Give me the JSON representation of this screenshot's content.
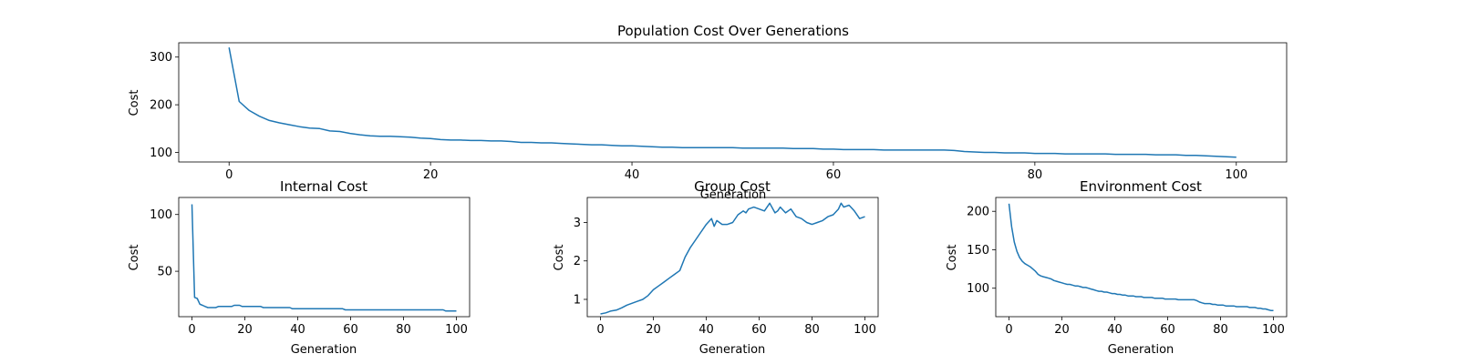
{
  "chart_data": [
    {
      "type": "line",
      "title": "Population Cost Over Generations",
      "xlabel": "Generation",
      "ylabel": "Cost",
      "xlim": [
        -5,
        105
      ],
      "ylim": [
        80,
        330
      ],
      "xticks": [
        0,
        20,
        40,
        60,
        80,
        100
      ],
      "yticks": [
        100,
        200,
        300
      ],
      "grid": false,
      "color": "#1f77b4",
      "series": [
        {
          "x": [
            0,
            1,
            2,
            3,
            4,
            5,
            6,
            7,
            8,
            9,
            10,
            11,
            12,
            13,
            14,
            15,
            16,
            17,
            18,
            19,
            20,
            21,
            22,
            23,
            24,
            25,
            26,
            27,
            28,
            29,
            30,
            31,
            32,
            33,
            34,
            35,
            36,
            37,
            38,
            39,
            40,
            41,
            42,
            43,
            44,
            45,
            46,
            47,
            48,
            49,
            50,
            51,
            52,
            53,
            54,
            55,
            56,
            57,
            58,
            59,
            60,
            61,
            62,
            63,
            64,
            65,
            66,
            67,
            68,
            69,
            70,
            71,
            72,
            73,
            74,
            75,
            76,
            77,
            78,
            79,
            80,
            81,
            82,
            83,
            84,
            85,
            86,
            87,
            88,
            89,
            90,
            91,
            92,
            93,
            94,
            95,
            96,
            97,
            98,
            99,
            100
          ],
          "values": [
            320,
            207,
            188,
            176,
            167,
            162,
            158,
            154,
            151,
            150,
            145,
            144,
            140,
            137,
            135,
            134,
            134,
            133,
            132,
            130,
            129,
            127,
            126,
            126,
            125,
            125,
            124,
            124,
            123,
            121,
            121,
            120,
            120,
            119,
            118,
            117,
            116,
            116,
            115,
            114,
            114,
            113,
            112,
            111,
            111,
            110,
            110,
            110,
            110,
            110,
            110,
            109,
            109,
            109,
            109,
            109,
            108,
            108,
            108,
            107,
            107,
            106,
            106,
            106,
            106,
            105,
            105,
            105,
            105,
            105,
            105,
            105,
            104,
            102,
            101,
            100,
            100,
            99,
            99,
            99,
            98,
            98,
            98,
            97,
            97,
            97,
            97,
            97,
            96,
            96,
            96,
            96,
            95,
            95,
            95,
            94,
            94,
            93,
            92,
            91,
            90
          ]
        }
      ]
    },
    {
      "type": "line",
      "title": "Internal Cost",
      "xlabel": "Generation",
      "ylabel": "Cost",
      "xlim": [
        -5,
        105
      ],
      "ylim": [
        10,
        115
      ],
      "xticks": [
        0,
        20,
        40,
        60,
        80,
        100
      ],
      "yticks": [
        50,
        100
      ],
      "grid": false,
      "color": "#1f77b4",
      "series": [
        {
          "x": [
            0,
            1,
            2,
            3,
            4,
            5,
            6,
            7,
            8,
            9,
            10,
            11,
            12,
            13,
            14,
            15,
            16,
            17,
            18,
            19,
            20,
            21,
            22,
            23,
            24,
            25,
            26,
            27,
            28,
            29,
            30,
            31,
            32,
            33,
            34,
            35,
            36,
            37,
            38,
            39,
            40,
            41,
            42,
            43,
            44,
            45,
            46,
            47,
            48,
            49,
            50,
            51,
            52,
            53,
            54,
            55,
            56,
            57,
            58,
            59,
            60,
            61,
            62,
            63,
            64,
            65,
            66,
            67,
            68,
            69,
            70,
            71,
            72,
            73,
            74,
            75,
            76,
            77,
            78,
            79,
            80,
            81,
            82,
            83,
            84,
            85,
            86,
            87,
            88,
            89,
            90,
            91,
            92,
            93,
            94,
            95,
            96,
            97,
            98,
            99,
            100
          ],
          "values": [
            109,
            27,
            26,
            21,
            20,
            19,
            18,
            18,
            18,
            18,
            19,
            19,
            19,
            19,
            19,
            19,
            20,
            20,
            20,
            19,
            19,
            19,
            19,
            19,
            19,
            19,
            19,
            18,
            18,
            18,
            18,
            18,
            18,
            18,
            18,
            18,
            18,
            18,
            17,
            17,
            17,
            17,
            17,
            17,
            17,
            17,
            17,
            17,
            17,
            17,
            17,
            17,
            17,
            17,
            17,
            17,
            17,
            17,
            16,
            16,
            16,
            16,
            16,
            16,
            16,
            16,
            16,
            16,
            16,
            16,
            16,
            16,
            16,
            16,
            16,
            16,
            16,
            16,
            16,
            16,
            16,
            16,
            16,
            16,
            16,
            16,
            16,
            16,
            16,
            16,
            16,
            16,
            16,
            16,
            16,
            16,
            15,
            15,
            15,
            15,
            15
          ]
        }
      ]
    },
    {
      "type": "line",
      "title": "Group Cost",
      "xlabel": "Generation",
      "ylabel": "Cost",
      "xlim": [
        -5,
        105
      ],
      "ylim": [
        0.55,
        3.65
      ],
      "xticks": [
        0,
        20,
        40,
        60,
        80,
        100
      ],
      "yticks": [
        1,
        2,
        3
      ],
      "grid": false,
      "color": "#1f77b4",
      "series": [
        {
          "x": [
            0,
            2,
            4,
            6,
            8,
            10,
            12,
            14,
            16,
            18,
            20,
            22,
            24,
            26,
            28,
            30,
            32,
            34,
            36,
            38,
            40,
            42,
            43,
            44,
            45,
            46,
            48,
            50,
            52,
            54,
            55,
            56,
            58,
            60,
            62,
            64,
            66,
            67,
            68,
            70,
            72,
            74,
            76,
            78,
            80,
            82,
            84,
            86,
            88,
            90,
            91,
            92,
            94,
            96,
            98,
            100
          ],
          "values": [
            0.62,
            0.65,
            0.7,
            0.72,
            0.78,
            0.85,
            0.9,
            0.95,
            1.0,
            1.1,
            1.25,
            1.35,
            1.45,
            1.55,
            1.65,
            1.75,
            2.1,
            2.35,
            2.55,
            2.75,
            2.95,
            3.1,
            2.9,
            3.05,
            3.0,
            2.95,
            2.95,
            3.0,
            3.2,
            3.3,
            3.25,
            3.35,
            3.4,
            3.35,
            3.3,
            3.5,
            3.25,
            3.3,
            3.4,
            3.25,
            3.35,
            3.15,
            3.1,
            3.0,
            2.95,
            3.0,
            3.05,
            3.15,
            3.2,
            3.35,
            3.5,
            3.4,
            3.45,
            3.3,
            3.1,
            3.15
          ]
        }
      ]
    },
    {
      "type": "line",
      "title": "Environment Cost",
      "xlabel": "Generation",
      "ylabel": "Cost",
      "xlim": [
        -5,
        105
      ],
      "ylim": [
        63,
        218
      ],
      "xticks": [
        0,
        20,
        40,
        60,
        80,
        100
      ],
      "yticks": [
        100,
        150,
        200
      ],
      "grid": false,
      "color": "#1f77b4",
      "series": [
        {
          "x": [
            0,
            1,
            2,
            3,
            4,
            5,
            6,
            7,
            8,
            9,
            10,
            11,
            12,
            13,
            14,
            15,
            16,
            17,
            18,
            19,
            20,
            21,
            22,
            23,
            24,
            25,
            26,
            27,
            28,
            29,
            30,
            31,
            32,
            33,
            34,
            35,
            36,
            37,
            38,
            39,
            40,
            41,
            42,
            43,
            44,
            45,
            46,
            47,
            48,
            49,
            50,
            51,
            52,
            53,
            54,
            55,
            56,
            57,
            58,
            59,
            60,
            61,
            62,
            63,
            64,
            65,
            66,
            67,
            68,
            69,
            70,
            71,
            72,
            73,
            74,
            75,
            76,
            77,
            78,
            79,
            80,
            81,
            82,
            83,
            84,
            85,
            86,
            87,
            88,
            89,
            90,
            91,
            92,
            93,
            94,
            95,
            96,
            97,
            98,
            99,
            100
          ],
          "values": [
            210,
            180,
            160,
            148,
            140,
            135,
            132,
            130,
            128,
            125,
            122,
            118,
            116,
            115,
            114,
            113,
            112,
            110,
            109,
            108,
            107,
            106,
            105,
            105,
            104,
            103,
            103,
            102,
            101,
            101,
            100,
            99,
            98,
            97,
            96,
            96,
            95,
            95,
            94,
            93,
            93,
            92,
            92,
            91,
            91,
            90,
            90,
            90,
            89,
            89,
            89,
            88,
            88,
            88,
            88,
            87,
            87,
            87,
            87,
            86,
            86,
            86,
            86,
            86,
            85,
            85,
            85,
            85,
            85,
            85,
            85,
            84,
            82,
            81,
            80,
            80,
            80,
            79,
            79,
            78,
            78,
            78,
            77,
            77,
            77,
            77,
            76,
            76,
            76,
            76,
            76,
            75,
            75,
            75,
            74,
            74,
            73,
            73,
            72,
            71,
            71
          ]
        }
      ]
    }
  ]
}
